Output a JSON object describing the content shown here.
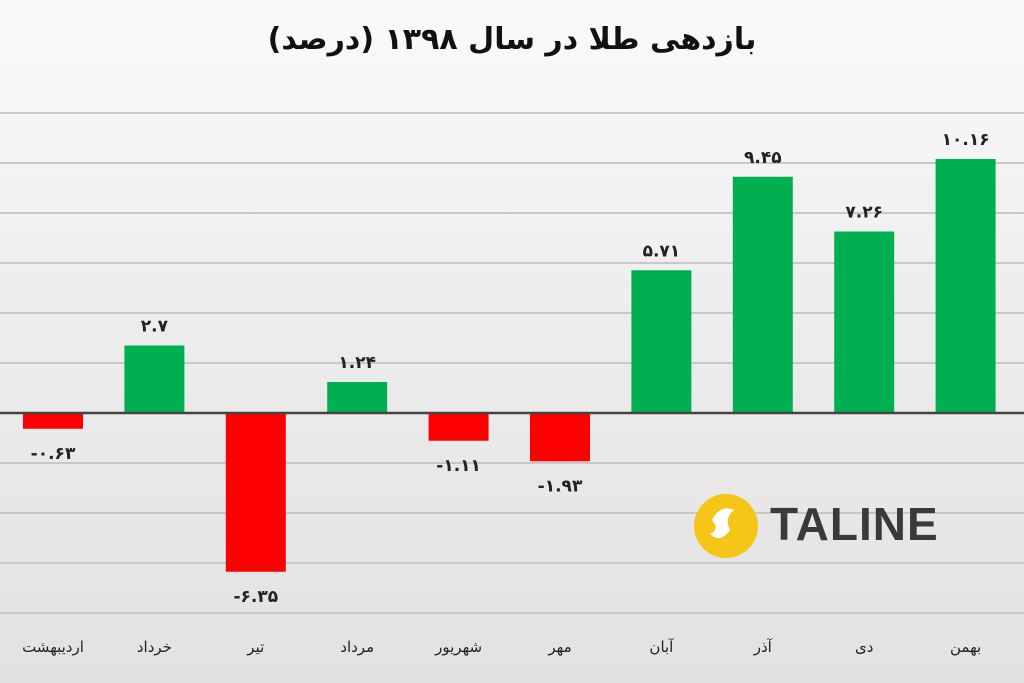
{
  "chart_data": {
    "type": "bar",
    "title": "بازدهی طلا در سال ۱۳۹۸ (درصد)",
    "categories": [
      "اردیبهشت",
      "خرداد",
      "تیر",
      "مرداد",
      "شهریور",
      "مهر",
      "آبان",
      "آذر",
      "دی",
      "بهمن"
    ],
    "values": [
      -0.63,
      2.7,
      -6.35,
      1.24,
      -1.11,
      -1.93,
      5.71,
      9.45,
      7.26,
      10.16
    ],
    "data_labels": [
      "-۰.۶۳",
      "۲.۷",
      "-۶.۳۵",
      "۱.۲۴",
      "-۱.۱۱",
      "-۱.۹۳",
      "۵.۷۱",
      "۹.۴۵",
      "۷.۲۶",
      "۱۰.۱۶"
    ],
    "xlabel": "",
    "ylabel": "",
    "ylim": [
      -8,
      12
    ],
    "grid": true,
    "y_grid_step": 2,
    "colors": {
      "positive": "#00b050",
      "negative": "#ff0000"
    }
  },
  "watermark": {
    "text": "TALINE",
    "color": "#f5c518"
  }
}
